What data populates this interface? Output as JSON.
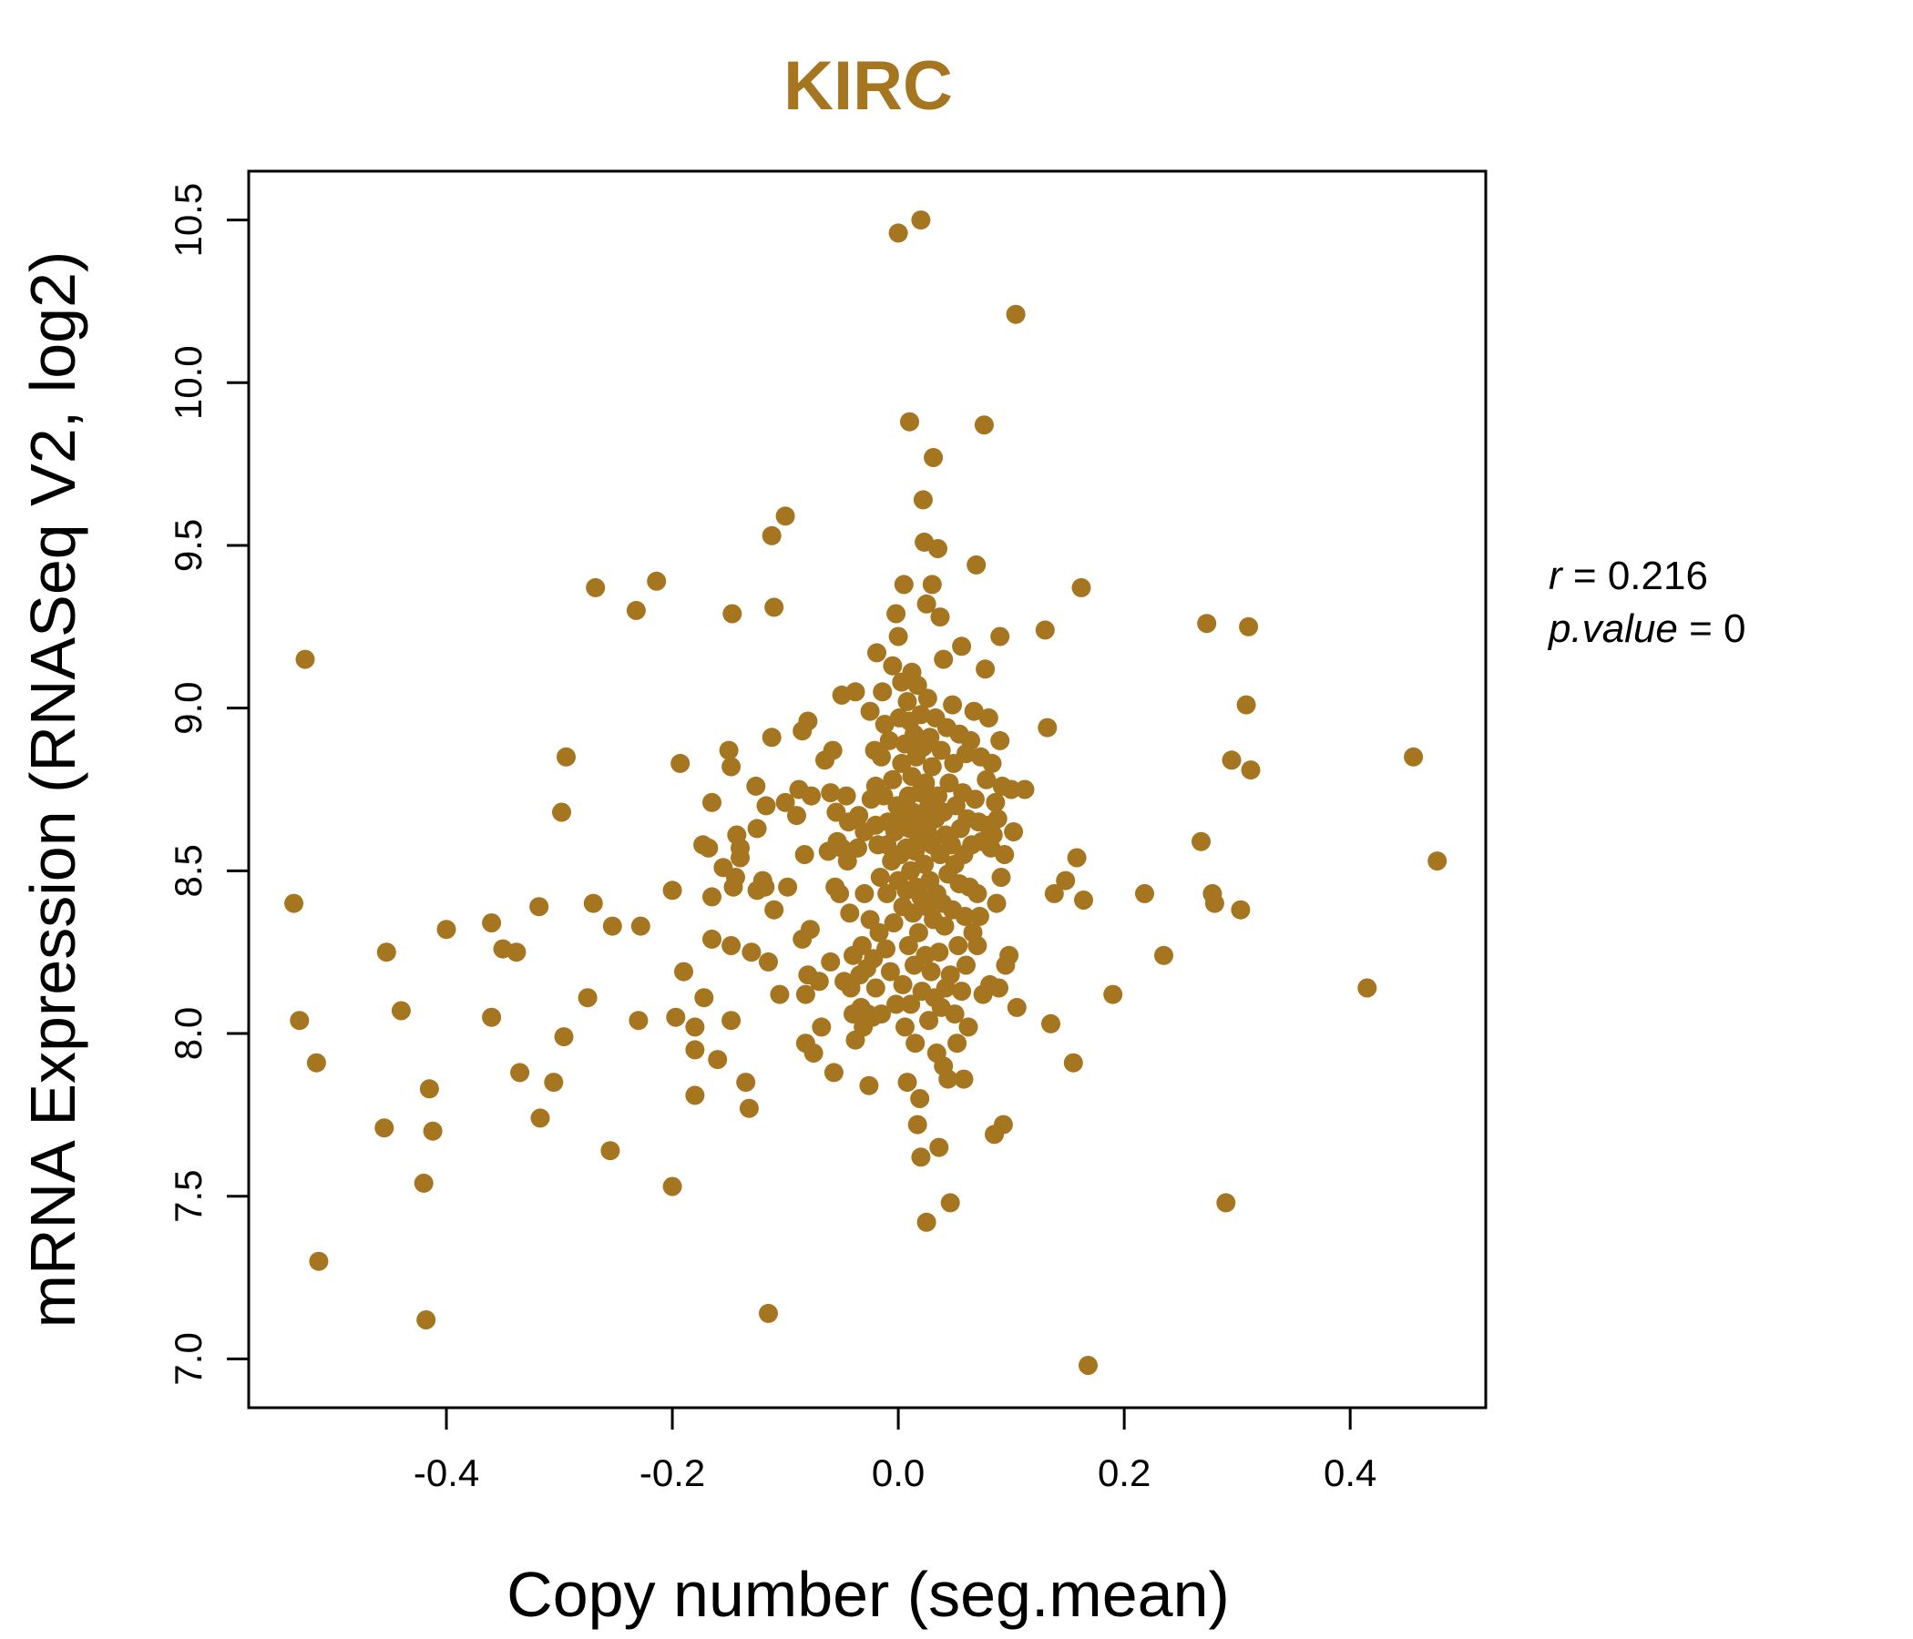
{
  "chart_data": {
    "type": "scatter",
    "title": "KIRC",
    "xlabel": "Copy number (seg.mean)",
    "ylabel": "mRNA Expression (RNASeq V2, log2)",
    "xlim": [
      -0.575,
      0.52
    ],
    "ylim": [
      6.85,
      10.65
    ],
    "x_ticks": [
      -0.4,
      -0.2,
      0.0,
      0.2,
      0.4
    ],
    "x_tick_labels": [
      "-0.4",
      "-0.2",
      "0.0",
      "0.2",
      "0.4"
    ],
    "y_ticks": [
      7.0,
      7.5,
      8.0,
      8.5,
      9.0,
      9.5,
      10.0,
      10.5
    ],
    "y_tick_labels": [
      "7.0",
      "7.5",
      "8.0",
      "8.5",
      "9.0",
      "9.5",
      "10.0",
      "10.5"
    ],
    "grid": false,
    "point_color": "#A67520",
    "stats": {
      "r_label": "r",
      "r_value": "0.216",
      "p_label": "p.value",
      "p_value": "0"
    },
    "points": [
      [
        -0.535,
        8.4
      ],
      [
        -0.53,
        8.04
      ],
      [
        -0.525,
        9.15
      ],
      [
        -0.515,
        7.91
      ],
      [
        -0.513,
        7.3
      ],
      [
        -0.455,
        7.71
      ],
      [
        -0.453,
        8.25
      ],
      [
        -0.44,
        8.07
      ],
      [
        -0.42,
        7.54
      ],
      [
        -0.418,
        7.12
      ],
      [
        -0.415,
        7.83
      ],
      [
        -0.412,
        7.7
      ],
      [
        -0.4,
        8.32
      ],
      [
        -0.36,
        8.34
      ],
      [
        -0.36,
        8.05
      ],
      [
        -0.35,
        8.26
      ],
      [
        -0.338,
        8.25
      ],
      [
        -0.335,
        7.88
      ],
      [
        -0.318,
        8.39
      ],
      [
        -0.317,
        7.74
      ],
      [
        -0.305,
        7.85
      ],
      [
        -0.298,
        8.68
      ],
      [
        -0.296,
        7.99
      ],
      [
        -0.294,
        8.85
      ],
      [
        -0.275,
        8.11
      ],
      [
        -0.27,
        8.4
      ],
      [
        -0.268,
        9.37
      ],
      [
        -0.255,
        7.64
      ],
      [
        -0.253,
        8.33
      ],
      [
        -0.232,
        9.3
      ],
      [
        -0.23,
        8.04
      ],
      [
        -0.228,
        8.33
      ],
      [
        -0.214,
        9.39
      ],
      [
        -0.2,
        7.53
      ],
      [
        -0.2,
        8.44
      ],
      [
        -0.197,
        8.05
      ],
      [
        -0.193,
        8.83
      ],
      [
        -0.19,
        8.19
      ],
      [
        -0.18,
        7.95
      ],
      [
        -0.18,
        8.02
      ],
      [
        -0.18,
        7.81
      ],
      [
        -0.173,
        8.58
      ],
      [
        -0.172,
        8.11
      ],
      [
        -0.168,
        8.57
      ],
      [
        -0.165,
        8.42
      ],
      [
        -0.165,
        8.71
      ],
      [
        -0.165,
        8.29
      ],
      [
        -0.16,
        7.92
      ],
      [
        -0.155,
        8.51
      ],
      [
        -0.15,
        8.87
      ],
      [
        -0.148,
        8.82
      ],
      [
        -0.148,
        8.04
      ],
      [
        -0.148,
        8.27
      ],
      [
        -0.147,
        9.29
      ],
      [
        -0.146,
        8.45
      ],
      [
        -0.144,
        8.48
      ],
      [
        -0.143,
        8.61
      ],
      [
        -0.14,
        8.54
      ],
      [
        -0.14,
        8.57
      ],
      [
        -0.135,
        7.85
      ],
      [
        -0.132,
        7.77
      ],
      [
        -0.13,
        8.25
      ],
      [
        -0.126,
        8.76
      ],
      [
        -0.125,
        8.63
      ],
      [
        -0.125,
        8.44
      ],
      [
        -0.12,
        8.47
      ],
      [
        -0.118,
        8.45
      ],
      [
        -0.117,
        8.7
      ],
      [
        -0.115,
        8.22
      ],
      [
        -0.115,
        7.14
      ],
      [
        -0.112,
        8.91
      ],
      [
        -0.112,
        9.53
      ],
      [
        -0.11,
        9.31
      ],
      [
        -0.11,
        8.38
      ],
      [
        -0.105,
        8.12
      ],
      [
        -0.1,
        9.59
      ],
      [
        -0.1,
        8.71
      ],
      [
        -0.098,
        8.45
      ],
      [
        -0.09,
        8.67
      ],
      [
        -0.088,
        8.75
      ],
      [
        -0.085,
        8.93
      ],
      [
        -0.085,
        8.29
      ],
      [
        -0.083,
        8.55
      ],
      [
        -0.082,
        8.12
      ],
      [
        -0.082,
        7.97
      ],
      [
        -0.08,
        8.18
      ],
      [
        -0.08,
        8.96
      ],
      [
        -0.078,
        8.32
      ],
      [
        -0.077,
        8.73
      ],
      [
        -0.075,
        7.94
      ],
      [
        -0.07,
        8.16
      ],
      [
        -0.068,
        8.02
      ],
      [
        -0.065,
        8.84
      ],
      [
        -0.062,
        8.56
      ],
      [
        -0.06,
        8.74
      ],
      [
        -0.06,
        8.22
      ],
      [
        -0.058,
        8.87
      ],
      [
        -0.057,
        7.88
      ],
      [
        -0.056,
        8.45
      ],
      [
        -0.055,
        8.68
      ],
      [
        -0.054,
        8.59
      ],
      [
        -0.052,
        8.43
      ],
      [
        -0.05,
        8.57
      ],
      [
        -0.05,
        9.04
      ],
      [
        -0.048,
        8.16
      ],
      [
        -0.046,
        8.73
      ],
      [
        -0.045,
        8.53
      ],
      [
        -0.044,
        8.65
      ],
      [
        -0.043,
        8.37
      ],
      [
        -0.042,
        8.14
      ],
      [
        -0.04,
        8.24
      ],
      [
        -0.04,
        8.06
      ],
      [
        -0.038,
        9.05
      ],
      [
        -0.038,
        7.98
      ],
      [
        -0.036,
        8.57
      ],
      [
        -0.035,
        8.67
      ],
      [
        -0.034,
        8.18
      ],
      [
        -0.033,
        8.08
      ],
      [
        -0.032,
        8.27
      ],
      [
        -0.031,
        8.02
      ],
      [
        -0.03,
        8.62
      ],
      [
        -0.03,
        8.43
      ],
      [
        -0.028,
        8.2
      ],
      [
        -0.027,
        8.06
      ],
      [
        -0.026,
        7.84
      ],
      [
        -0.025,
        8.99
      ],
      [
        -0.025,
        8.35
      ],
      [
        -0.024,
        8.72
      ],
      [
        -0.023,
        8.05
      ],
      [
        -0.022,
        8.23
      ],
      [
        -0.021,
        8.87
      ],
      [
        -0.02,
        8.64
      ],
      [
        -0.02,
        8.14
      ],
      [
        -0.02,
        8.76
      ],
      [
        -0.019,
        9.17
      ],
      [
        -0.018,
        8.58
      ],
      [
        -0.017,
        8.31
      ],
      [
        -0.016,
        8.48
      ],
      [
        -0.015,
        8.85
      ],
      [
        -0.015,
        8.06
      ],
      [
        -0.014,
        9.05
      ],
      [
        -0.013,
        8.73
      ],
      [
        -0.012,
        8.95
      ],
      [
        -0.011,
        8.26
      ],
      [
        -0.01,
        8.58
      ],
      [
        -0.01,
        8.43
      ],
      [
        -0.009,
        8.65
      ],
      [
        -0.008,
        8.9
      ],
      [
        -0.007,
        8.19
      ],
      [
        -0.006,
        8.53
      ],
      [
        -0.005,
        9.13
      ],
      [
        -0.005,
        8.78
      ],
      [
        -0.004,
        8.34
      ],
      [
        -0.003,
        8.62
      ],
      [
        -0.002,
        9.29
      ],
      [
        -0.002,
        8.09
      ],
      [
        -0.001,
        8.7
      ],
      [
        0.0,
        9.22
      ],
      [
        0.0,
        8.47
      ],
      [
        0.0,
        10.46
      ],
      [
        0.001,
        8.97
      ],
      [
        0.002,
        8.55
      ],
      [
        0.003,
        8.83
      ],
      [
        0.003,
        9.08
      ],
      [
        0.004,
        8.15
      ],
      [
        0.004,
        8.39
      ],
      [
        0.005,
        8.67
      ],
      [
        0.005,
        9.38
      ],
      [
        0.006,
        8.02
      ],
      [
        0.006,
        8.89
      ],
      [
        0.007,
        8.44
      ],
      [
        0.007,
        8.57
      ],
      [
        0.008,
        9.02
      ],
      [
        0.008,
        7.85
      ],
      [
        0.009,
        8.73
      ],
      [
        0.009,
        8.27
      ],
      [
        0.01,
        9.88
      ],
      [
        0.01,
        8.63
      ],
      [
        0.01,
        8.96
      ],
      [
        0.011,
        8.5
      ],
      [
        0.011,
        8.09
      ],
      [
        0.012,
        8.79
      ],
      [
        0.012,
        9.11
      ],
      [
        0.013,
        8.37
      ],
      [
        0.013,
        8.68
      ],
      [
        0.014,
        8.21
      ],
      [
        0.014,
        8.92
      ],
      [
        0.015,
        8.56
      ],
      [
        0.015,
        7.97
      ],
      [
        0.016,
        8.45
      ],
      [
        0.016,
        8.85
      ],
      [
        0.017,
        7.72
      ],
      [
        0.017,
        9.07
      ],
      [
        0.018,
        8.6
      ],
      [
        0.018,
        8.31
      ],
      [
        0.019,
        8.74
      ],
      [
        0.019,
        7.8
      ],
      [
        0.02,
        10.5
      ],
      [
        0.02,
        8.42
      ],
      [
        0.02,
        8.98
      ],
      [
        0.02,
        7.62
      ],
      [
        0.021,
        8.65
      ],
      [
        0.021,
        8.13
      ],
      [
        0.022,
        9.64
      ],
      [
        0.022,
        8.88
      ],
      [
        0.023,
        8.52
      ],
      [
        0.023,
        9.51
      ],
      [
        0.024,
        8.24
      ],
      [
        0.024,
        8.77
      ],
      [
        0.025,
        9.32
      ],
      [
        0.025,
        8.39
      ],
      [
        0.025,
        7.42
      ],
      [
        0.026,
        8.62
      ],
      [
        0.026,
        9.03
      ],
      [
        0.027,
        8.04
      ],
      [
        0.027,
        8.7
      ],
      [
        0.028,
        8.47
      ],
      [
        0.028,
        8.91
      ],
      [
        0.029,
        8.19
      ],
      [
        0.03,
        9.38
      ],
      [
        0.03,
        8.58
      ],
      [
        0.03,
        8.82
      ],
      [
        0.031,
        8.35
      ],
      [
        0.031,
        9.77
      ],
      [
        0.032,
        8.11
      ],
      [
        0.033,
        8.66
      ],
      [
        0.033,
        8.97
      ],
      [
        0.034,
        8.43
      ],
      [
        0.034,
        7.94
      ],
      [
        0.035,
        9.49
      ],
      [
        0.035,
        8.73
      ],
      [
        0.036,
        8.25
      ],
      [
        0.036,
        7.65
      ],
      [
        0.037,
        8.55
      ],
      [
        0.037,
        9.28
      ],
      [
        0.038,
        8.87
      ],
      [
        0.038,
        8.08
      ],
      [
        0.039,
        8.4
      ],
      [
        0.04,
        8.68
      ],
      [
        0.04,
        9.15
      ],
      [
        0.04,
        7.9
      ],
      [
        0.041,
        8.33
      ],
      [
        0.042,
        8.61
      ],
      [
        0.042,
        8.14
      ],
      [
        0.043,
        8.94
      ],
      [
        0.044,
        8.49
      ],
      [
        0.044,
        7.86
      ],
      [
        0.045,
        8.77
      ],
      [
        0.046,
        8.18
      ],
      [
        0.046,
        7.48
      ],
      [
        0.047,
        8.58
      ],
      [
        0.048,
        9.01
      ],
      [
        0.048,
        8.38
      ],
      [
        0.049,
        8.83
      ],
      [
        0.05,
        8.06
      ],
      [
        0.05,
        8.52
      ],
      [
        0.051,
        8.7
      ],
      [
        0.052,
        7.97
      ],
      [
        0.053,
        8.27
      ],
      [
        0.054,
        8.46
      ],
      [
        0.054,
        8.92
      ],
      [
        0.055,
        8.63
      ],
      [
        0.056,
        8.13
      ],
      [
        0.056,
        9.19
      ],
      [
        0.057,
        8.74
      ],
      [
        0.058,
        8.55
      ],
      [
        0.058,
        7.86
      ],
      [
        0.059,
        8.36
      ],
      [
        0.06,
        8.86
      ],
      [
        0.06,
        8.21
      ],
      [
        0.061,
        8.66
      ],
      [
        0.062,
        8.02
      ],
      [
        0.063,
        8.45
      ],
      [
        0.064,
        8.9
      ],
      [
        0.065,
        8.58
      ],
      [
        0.066,
        8.31
      ],
      [
        0.067,
        8.99
      ],
      [
        0.068,
        8.72
      ],
      [
        0.069,
        9.44
      ],
      [
        0.07,
        8.27
      ],
      [
        0.07,
        8.43
      ],
      [
        0.071,
        8.65
      ],
      [
        0.072,
        8.36
      ],
      [
        0.073,
        8.85
      ],
      [
        0.074,
        8.59
      ],
      [
        0.075,
        8.12
      ],
      [
        0.076,
        9.87
      ],
      [
        0.077,
        9.12
      ],
      [
        0.078,
        8.78
      ],
      [
        0.079,
        8.64
      ],
      [
        0.08,
        8.97
      ],
      [
        0.081,
        8.15
      ],
      [
        0.082,
        8.57
      ],
      [
        0.083,
        8.83
      ],
      [
        0.084,
        8.61
      ],
      [
        0.085,
        7.69
      ],
      [
        0.086,
        8.71
      ],
      [
        0.087,
        8.4
      ],
      [
        0.088,
        8.66
      ],
      [
        0.089,
        8.14
      ],
      [
        0.09,
        9.22
      ],
      [
        0.09,
        8.9
      ],
      [
        0.091,
        8.48
      ],
      [
        0.092,
        8.76
      ],
      [
        0.093,
        7.72
      ],
      [
        0.094,
        8.55
      ],
      [
        0.095,
        8.21
      ],
      [
        0.098,
        8.24
      ],
      [
        0.1,
        8.75
      ],
      [
        0.102,
        8.62
      ],
      [
        0.104,
        10.21
      ],
      [
        0.105,
        8.08
      ],
      [
        0.112,
        8.75
      ],
      [
        0.13,
        9.24
      ],
      [
        0.132,
        8.94
      ],
      [
        0.135,
        8.03
      ],
      [
        0.138,
        8.43
      ],
      [
        0.148,
        8.47
      ],
      [
        0.155,
        7.91
      ],
      [
        0.158,
        8.54
      ],
      [
        0.162,
        9.37
      ],
      [
        0.164,
        8.41
      ],
      [
        0.168,
        6.98
      ],
      [
        0.19,
        8.12
      ],
      [
        0.218,
        8.43
      ],
      [
        0.235,
        8.24
      ],
      [
        0.268,
        8.59
      ],
      [
        0.273,
        9.26
      ],
      [
        0.278,
        8.43
      ],
      [
        0.28,
        8.4
      ],
      [
        0.29,
        7.48
      ],
      [
        0.295,
        8.84
      ],
      [
        0.303,
        8.38
      ],
      [
        0.308,
        9.01
      ],
      [
        0.31,
        9.25
      ],
      [
        0.312,
        8.81
      ],
      [
        0.415,
        8.14
      ],
      [
        0.456,
        8.85
      ],
      [
        0.477,
        8.53
      ]
    ]
  }
}
